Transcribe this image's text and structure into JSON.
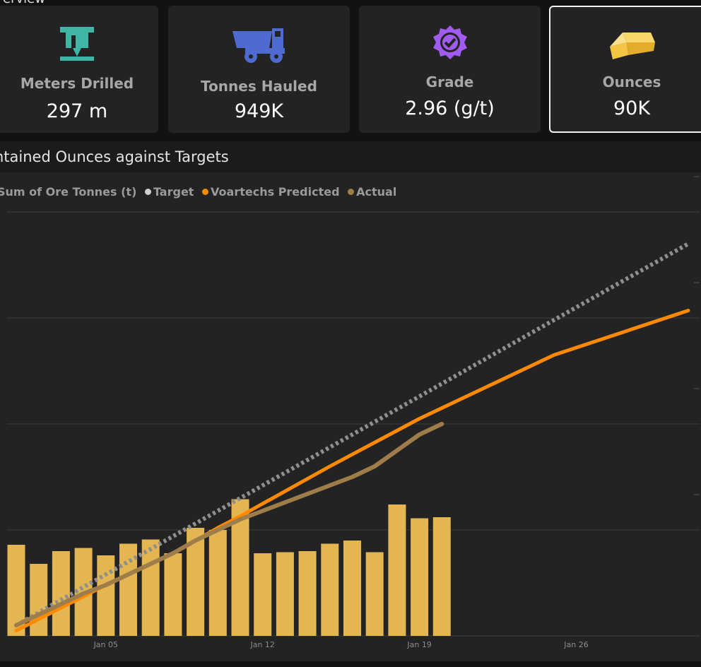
{
  "page": {
    "section_title_partial": "erview"
  },
  "cards": [
    {
      "label": "Meters Drilled",
      "value": "297 m",
      "icon": "drill-icon"
    },
    {
      "label": "Tonnes Hauled",
      "value": "949K",
      "icon": "haul-truck-icon"
    },
    {
      "label": "Grade",
      "value": "2.96 (g/t)",
      "icon": "verified-badge-icon"
    },
    {
      "label": "Ounces",
      "value": "90K",
      "icon": "gold-bar-icon"
    }
  ],
  "colors": {
    "drill": "#3fb5a5",
    "truck": "#4f6bd1",
    "badge": "#a05cf0",
    "gold": "#f4c542",
    "bars": "#e3b651",
    "target": "#8f8f8f",
    "predicted": "#ff8a00",
    "actual": "#9e7d4a",
    "grid": "#3c3c3c"
  },
  "chart_data": {
    "type": "bar+line",
    "title": "ntained Ounces against Targets",
    "legend": [
      {
        "name": "Sum of Ore Tonnes (t)",
        "marker": false
      },
      {
        "name": "Target",
        "color": "#9a9a9a"
      },
      {
        "name": "Voartechs Predicted",
        "color": "#ff8a00"
      },
      {
        "name": "Actual",
        "color": "#9e7d4a"
      }
    ],
    "x_start_day": 1,
    "x_end_day": 31,
    "x_ticks": [
      {
        "day": 5,
        "label": "Jan 05"
      },
      {
        "day": 12,
        "label": "Jan 12"
      },
      {
        "day": 19,
        "label": "Jan 19"
      },
      {
        "day": 26,
        "label": "Jan 26"
      }
    ],
    "ylim": [
      0,
      4
    ],
    "grid_lines": [
      1,
      2,
      3,
      4
    ],
    "series": [
      {
        "name": "Sum of Ore Tonnes (t)",
        "kind": "bar",
        "x": [
          1,
          2,
          3,
          4,
          5,
          6,
          7,
          8,
          9,
          10,
          11,
          12,
          13,
          14,
          15,
          16,
          17,
          18,
          19,
          20
        ],
        "values": [
          0.86,
          0.68,
          0.8,
          0.83,
          0.76,
          0.87,
          0.91,
          0.78,
          1.02,
          1.0,
          1.29,
          0.78,
          0.79,
          0.8,
          0.87,
          0.9,
          0.79,
          1.24,
          1.11,
          1.12
        ]
      },
      {
        "name": "Target",
        "kind": "line-dotted",
        "x": [
          1,
          31
        ],
        "values": [
          0.1,
          3.7
        ]
      },
      {
        "name": "Voartechs Predicted",
        "kind": "line",
        "x": [
          1,
          5,
          8,
          10,
          11,
          15,
          19,
          25,
          31
        ],
        "values": [
          0.05,
          0.48,
          0.78,
          1.02,
          1.13,
          1.6,
          2.05,
          2.65,
          3.07
        ]
      },
      {
        "name": "Actual",
        "kind": "line",
        "x": [
          1,
          2,
          3,
          4,
          5,
          6,
          7,
          8,
          9,
          10,
          11,
          12,
          13,
          14,
          15,
          16,
          17,
          18,
          19,
          20
        ],
        "values": [
          0.1,
          0.2,
          0.3,
          0.4,
          0.48,
          0.58,
          0.68,
          0.78,
          0.9,
          1.0,
          1.1,
          1.18,
          1.26,
          1.34,
          1.42,
          1.5,
          1.6,
          1.75,
          1.9,
          2.0
        ]
      }
    ]
  }
}
